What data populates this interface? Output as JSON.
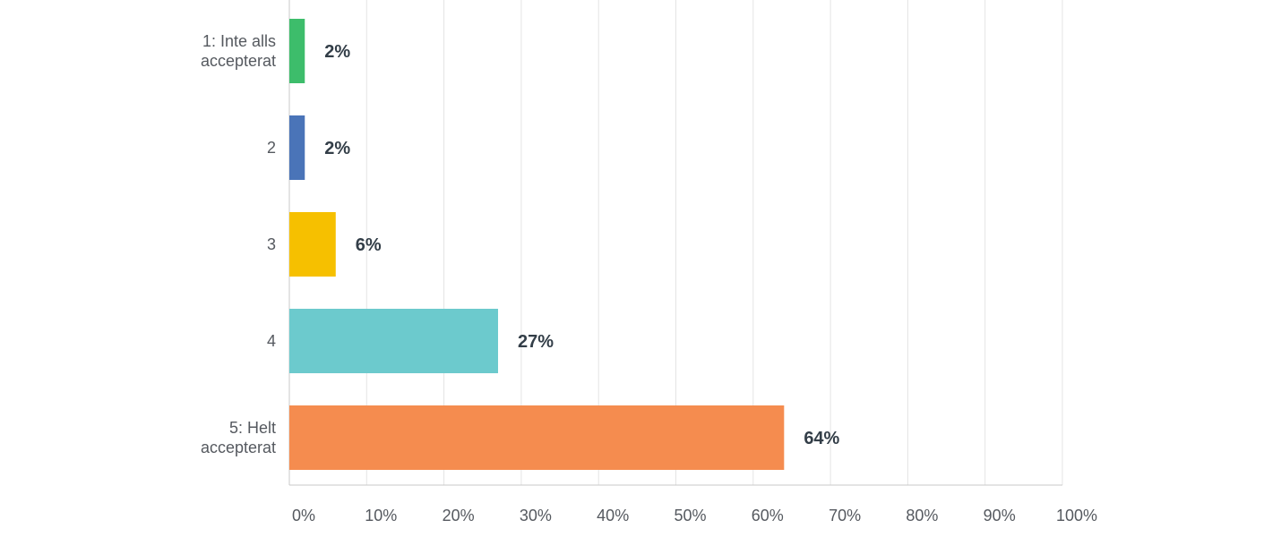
{
  "chart_data": {
    "type": "bar",
    "orientation": "horizontal",
    "categories": [
      [
        "1: Inte alls",
        "accepterat"
      ],
      [
        "2"
      ],
      [
        "3"
      ],
      [
        "4"
      ],
      [
        "5: Helt",
        "accepterat"
      ]
    ],
    "values": [
      2,
      2,
      6,
      27,
      64
    ],
    "value_labels": [
      "2%",
      "2%",
      "6%",
      "27%",
      "64%"
    ],
    "colors": [
      "#3dbd6b",
      "#4a74b8",
      "#f6c000",
      "#6ccacd",
      "#f58c4f"
    ],
    "xlim": [
      0,
      100
    ],
    "x_ticks": [
      "0%",
      "10%",
      "20%",
      "30%",
      "40%",
      "50%",
      "60%",
      "70%",
      "80%",
      "90%",
      "100%"
    ],
    "grid": true,
    "title": "",
    "xlabel": "",
    "ylabel": ""
  }
}
